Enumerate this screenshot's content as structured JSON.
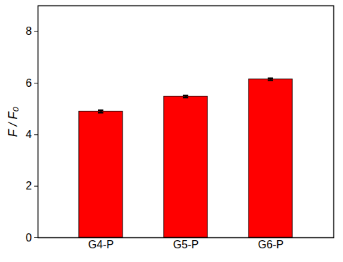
{
  "chart_data": {
    "type": "bar",
    "categories": [
      "G4-P",
      "G5-P",
      "G6-P"
    ],
    "values": [
      4.9,
      5.48,
      6.15
    ],
    "errors": [
      0.05,
      0.04,
      0.04
    ],
    "color": "#ff0000",
    "y_label": "F / F₀",
    "ylim": [
      0,
      9
    ],
    "yticks": [
      0,
      2,
      4,
      6,
      8
    ],
    "grid": false
  }
}
